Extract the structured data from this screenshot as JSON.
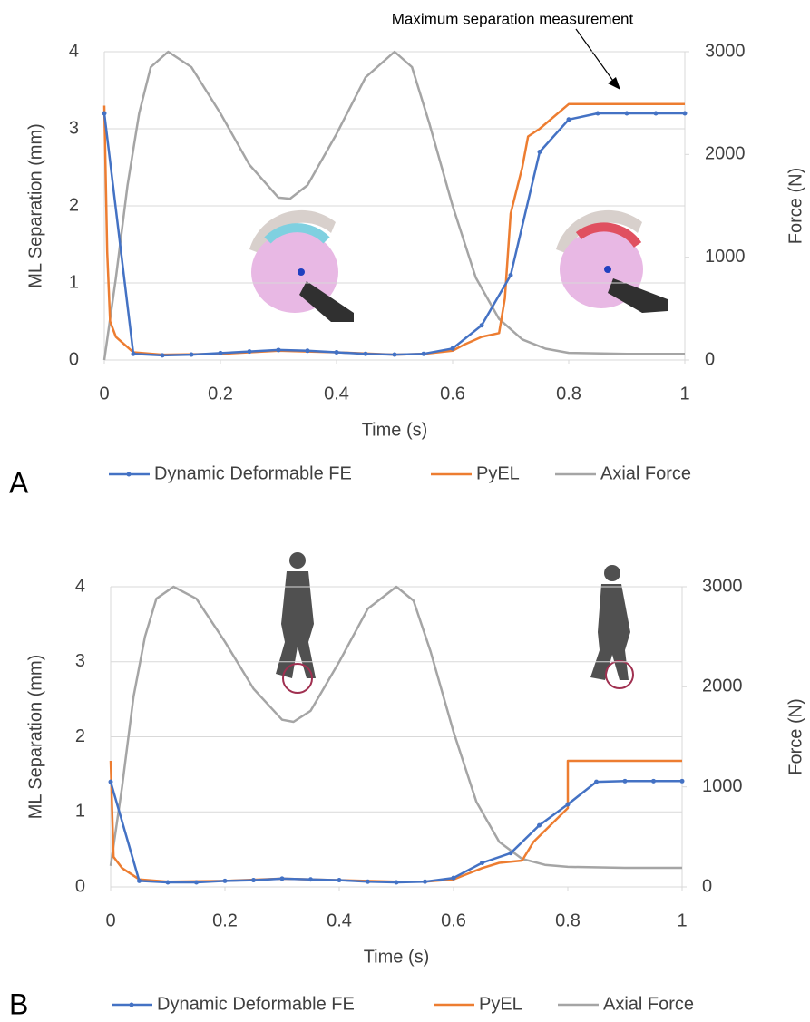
{
  "chart_data": [
    {
      "type": "line",
      "panel_label": "A",
      "annotation": "Maximum separation measurement",
      "x_label": "Time (s)",
      "y_label": "ML Separation (mm)",
      "y2_label": "Force (N)",
      "xlim": [
        0,
        1
      ],
      "xticks": [
        0,
        0.2,
        0.4,
        0.6,
        0.8,
        1
      ],
      "ylim": [
        0,
        4
      ],
      "yticks": [
        0,
        1,
        2,
        3,
        4
      ],
      "y2lim": [
        0,
        3000
      ],
      "y2ticks": [
        0,
        1000,
        2000,
        3000
      ],
      "grid": true,
      "series": [
        {
          "name": "Dynamic Deformable FE",
          "color": "#4472c4",
          "marker": true,
          "x": [
            0,
            0.05,
            0.1,
            0.15,
            0.2,
            0.25,
            0.3,
            0.35,
            0.4,
            0.45,
            0.5,
            0.55,
            0.6,
            0.65,
            0.7,
            0.75,
            0.8,
            0.85,
            0.9,
            0.95,
            1
          ],
          "values": [
            3.2,
            0.08,
            0.06,
            0.07,
            0.09,
            0.11,
            0.13,
            0.12,
            0.1,
            0.08,
            0.07,
            0.08,
            0.15,
            0.45,
            1.1,
            2.7,
            3.12,
            3.2,
            3.2,
            3.2,
            3.2
          ]
        },
        {
          "name": "PyEL",
          "color": "#ed7d31",
          "marker": false,
          "x": [
            0,
            0.005,
            0.01,
            0.02,
            0.05,
            0.1,
            0.2,
            0.3,
            0.4,
            0.5,
            0.55,
            0.6,
            0.62,
            0.65,
            0.68,
            0.69,
            0.7,
            0.71,
            0.72,
            0.73,
            0.75,
            0.8,
            1
          ],
          "values": [
            3.3,
            1.4,
            0.5,
            0.3,
            0.1,
            0.07,
            0.08,
            0.12,
            0.1,
            0.07,
            0.08,
            0.12,
            0.2,
            0.3,
            0.35,
            0.8,
            1.9,
            2.2,
            2.5,
            2.9,
            3.0,
            3.32,
            3.32
          ]
        },
        {
          "name": "Axial Force",
          "color": "#a5a5a5",
          "marker": false,
          "axis": "y2",
          "x": [
            0,
            0.02,
            0.04,
            0.06,
            0.08,
            0.11,
            0.15,
            0.2,
            0.25,
            0.3,
            0.32,
            0.35,
            0.4,
            0.45,
            0.5,
            0.53,
            0.56,
            0.6,
            0.64,
            0.68,
            0.72,
            0.76,
            0.8,
            0.9,
            1
          ],
          "values": [
            0,
            800,
            1700,
            2400,
            2850,
            3000,
            2850,
            2400,
            1900,
            1580,
            1570,
            1700,
            2200,
            2750,
            3000,
            2850,
            2300,
            1500,
            800,
            400,
            200,
            110,
            70,
            60,
            60
          ]
        }
      ]
    },
    {
      "type": "line",
      "panel_label": "B",
      "x_label": "Time (s)",
      "y_label": "ML Separation (mm)",
      "y2_label": "Force (N)",
      "xlim": [
        0,
        1
      ],
      "xticks": [
        0,
        0.2,
        0.4,
        0.6,
        0.8,
        1
      ],
      "ylim": [
        0,
        4
      ],
      "yticks": [
        0,
        1,
        2,
        3,
        4
      ],
      "y2lim": [
        0,
        3000
      ],
      "y2ticks": [
        0,
        1000,
        2000,
        3000
      ],
      "grid": true,
      "series": [
        {
          "name": "Dynamic Deformable FE",
          "color": "#4472c4",
          "marker": true,
          "x": [
            0,
            0.05,
            0.1,
            0.15,
            0.2,
            0.25,
            0.3,
            0.35,
            0.4,
            0.45,
            0.5,
            0.55,
            0.6,
            0.65,
            0.7,
            0.75,
            0.8,
            0.85,
            0.9,
            0.95,
            1
          ],
          "values": [
            1.4,
            0.08,
            0.06,
            0.06,
            0.08,
            0.09,
            0.11,
            0.1,
            0.09,
            0.07,
            0.06,
            0.07,
            0.12,
            0.32,
            0.45,
            0.82,
            1.1,
            1.4,
            1.41,
            1.41,
            1.41
          ]
        },
        {
          "name": "PyEL",
          "color": "#ed7d31",
          "marker": false,
          "x": [
            0,
            0.005,
            0.02,
            0.05,
            0.1,
            0.2,
            0.3,
            0.4,
            0.5,
            0.55,
            0.6,
            0.65,
            0.68,
            0.72,
            0.74,
            0.8,
            0.8,
            1
          ],
          "values": [
            1.68,
            0.4,
            0.25,
            0.1,
            0.07,
            0.08,
            0.11,
            0.09,
            0.07,
            0.07,
            0.1,
            0.25,
            0.32,
            0.35,
            0.6,
            1.05,
            1.68,
            1.68
          ]
        },
        {
          "name": "Axial Force",
          "color": "#a5a5a5",
          "marker": false,
          "axis": "y2",
          "x": [
            0,
            0.02,
            0.04,
            0.06,
            0.08,
            0.11,
            0.15,
            0.2,
            0.25,
            0.3,
            0.32,
            0.35,
            0.4,
            0.45,
            0.5,
            0.53,
            0.56,
            0.6,
            0.64,
            0.68,
            0.72,
            0.76,
            0.8,
            0.9,
            1
          ],
          "values": [
            210,
            1000,
            1900,
            2500,
            2880,
            3000,
            2880,
            2450,
            1980,
            1670,
            1650,
            1760,
            2250,
            2780,
            3000,
            2860,
            2350,
            1550,
            850,
            450,
            280,
            220,
            200,
            190,
            190
          ]
        }
      ]
    }
  ]
}
